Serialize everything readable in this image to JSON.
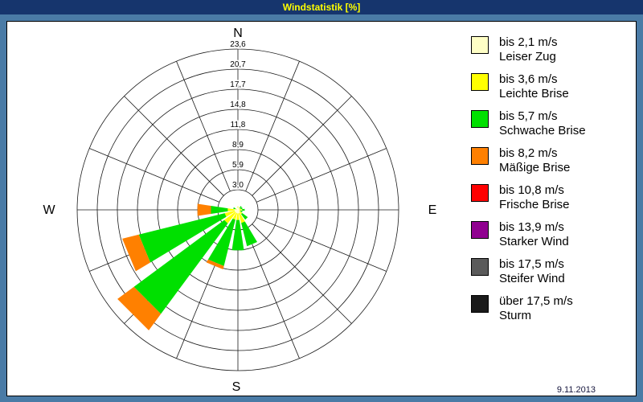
{
  "window": {
    "title": "Windstatistik [%]",
    "date": "9.11.2013"
  },
  "compass": {
    "n": "N",
    "e": "E",
    "s": "S",
    "w": "W"
  },
  "colors": {
    "frame": "#4A7BA6",
    "titlebar": "#16356D",
    "title_text": "#FFFF00",
    "panel": "#FFFFFF",
    "grid": "#1A1A1A"
  },
  "chart_data": {
    "type": "windrose-polar-stacked-bar",
    "title": "Windstatistik [%]",
    "units": "%",
    "legend_position": "right",
    "grid": true,
    "max": 23.6,
    "ring_values": [
      2.95,
      5.9,
      8.85,
      11.8,
      14.75,
      17.7,
      20.65,
      23.6
    ],
    "ring_labels": [
      "3,0",
      "5,9",
      "8,9",
      "11,8",
      "14,8",
      "17,7",
      "20,7",
      "23,6"
    ],
    "directions": [
      "N",
      "NNE",
      "NE",
      "ENE",
      "E",
      "ESE",
      "SE",
      "SSE",
      "S",
      "SSW",
      "SW",
      "WSW",
      "W",
      "WNW",
      "NW",
      "NNW"
    ],
    "series": [
      {
        "speed_label": "bis 2,1 m/s",
        "name": "Leiser Zug",
        "color": "#FFFFC6",
        "values": [
          0.3,
          0.1,
          0.2,
          0.2,
          0.3,
          0.2,
          0.3,
          0.5,
          0.5,
          0.5,
          0.5,
          0.5,
          0.5,
          0.2,
          0.1,
          0.1
        ]
      },
      {
        "speed_label": "bis 3,6 m/s",
        "name": "Leichte Brise",
        "color": "#FFFF00",
        "values": [
          0.2,
          0,
          0.2,
          0.2,
          0.3,
          0.2,
          0.5,
          1.5,
          1.0,
          1.0,
          2.0,
          1.5,
          1.0,
          0.2,
          0,
          0
        ]
      },
      {
        "speed_label": "bis 5,7 m/s",
        "name": "Schwache Brise",
        "color": "#00E000",
        "values": [
          0,
          0,
          0.3,
          0.3,
          0.4,
          0.3,
          1.0,
          3.5,
          4.5,
          7.0,
          16.5,
          13.0,
          2.5,
          0.3,
          0,
          0
        ]
      },
      {
        "speed_label": "bis 8,2 m/s",
        "name": "Mäßige Brise",
        "color": "#FF8000",
        "values": [
          0,
          0,
          0,
          0,
          0,
          0,
          0,
          0,
          0,
          0.5,
          3.0,
          2.5,
          2.0,
          0,
          0,
          0
        ]
      },
      {
        "speed_label": "bis 10,8 m/s",
        "name": "Frische Brise",
        "color": "#FF0000",
        "values": [
          0,
          0,
          0,
          0,
          0,
          0,
          0,
          0,
          0,
          0,
          0,
          0,
          0,
          0,
          0,
          0
        ]
      },
      {
        "speed_label": "bis 13,9 m/s",
        "name": "Starker Wind",
        "color": "#900090",
        "values": [
          0,
          0,
          0,
          0,
          0,
          0,
          0,
          0,
          0,
          0,
          0,
          0,
          0,
          0,
          0,
          0
        ]
      },
      {
        "speed_label": "bis 17,5 m/s",
        "name": "Steifer Wind",
        "color": "#5A5A5A",
        "values": [
          0,
          0,
          0,
          0,
          0,
          0,
          0,
          0,
          0,
          0,
          0,
          0,
          0,
          0,
          0,
          0
        ]
      },
      {
        "speed_label": "über 17,5 m/s",
        "name": "Sturm",
        "color": "#1A1A1A",
        "values": [
          0,
          0,
          0,
          0,
          0,
          0,
          0,
          0,
          0,
          0,
          0,
          0,
          0,
          0,
          0,
          0
        ]
      }
    ]
  }
}
